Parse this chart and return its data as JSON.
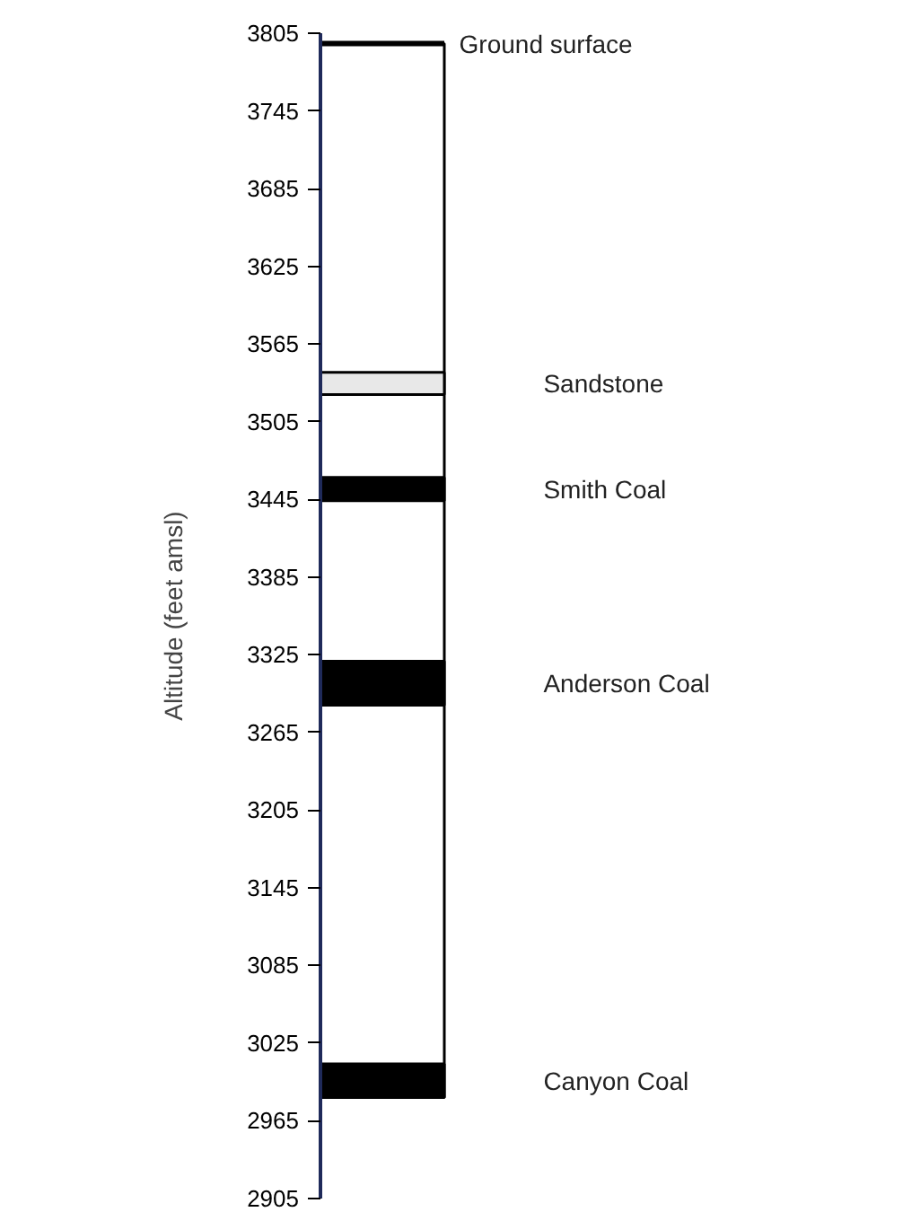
{
  "chart_data": {
    "type": "bar",
    "ylabel": "Altitude (feet amsl)",
    "categories": [
      null
    ],
    "series": [
      {
        "color": "#ffffff",
        "values": [
          814
        ],
        "base": [
          2983
        ]
      },
      {
        "name": "Sandstone",
        "color": "#e8e8e8",
        "values": [
          17
        ],
        "base": [
          3526
        ]
      },
      {
        "name": "Smith Coal",
        "color": "#000000",
        "values": [
          18
        ],
        "base": [
          3444
        ]
      },
      {
        "name": "Anderson Coal",
        "color": "#000000",
        "values": [
          34
        ],
        "base": [
          3286
        ]
      },
      {
        "name": "Canyon Coal",
        "color": "#000000",
        "values": [
          26
        ],
        "base": [
          2983
        ]
      }
    ],
    "ref_lines": [
      {
        "axis": "y",
        "value": 3797,
        "label": "Ground surface",
        "color": "#000000"
      }
    ],
    "ylim": [
      2905,
      3805
    ],
    "yticks": [
      2905,
      2965,
      3025,
      3085,
      3145,
      3205,
      3265,
      3325,
      3385,
      3445,
      3505,
      3565,
      3625,
      3685,
      3745,
      3805
    ],
    "grid": false,
    "tick_labels": "y"
  }
}
